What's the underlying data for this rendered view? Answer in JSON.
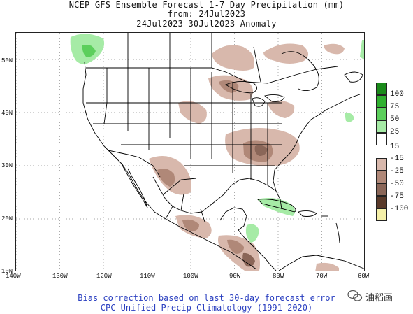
{
  "title": {
    "line1": "NCEP GFS Ensemble Forecast 1-7 Day Precipitation (mm)",
    "line2": "from: 24Jul2023",
    "line3": "24Jul2023-30Jul2023 Anomaly"
  },
  "axes": {
    "lat_labels": [
      "50N",
      "40N",
      "30N",
      "20N",
      "10N"
    ],
    "lat_values": [
      50,
      40,
      30,
      20,
      10
    ],
    "lon_labels": [
      "140W",
      "130W",
      "120W",
      "110W",
      "100W",
      "90W",
      "80W",
      "70W",
      "60W"
    ],
    "lon_values": [
      -140,
      -130,
      -120,
      -110,
      -100,
      -90,
      -80,
      -70,
      -60
    ],
    "lon_range": [
      -140,
      -60
    ],
    "lat_range": [
      10,
      55
    ]
  },
  "legend": {
    "entries": [
      {
        "label": "100",
        "color": "#1a8a1a"
      },
      {
        "label": "75",
        "color": "#2fb02f"
      },
      {
        "label": "50",
        "color": "#5ccf5c"
      },
      {
        "label": "25",
        "color": "#a6eba6"
      },
      {
        "label": "15",
        "color": "#ffffff"
      },
      {
        "label": "-15",
        "color": "#d8b8ac"
      },
      {
        "label": "-25",
        "color": "#b08878"
      },
      {
        "label": "-50",
        "color": "#8a6658"
      },
      {
        "label": "-75",
        "color": "#5a3a2a"
      },
      {
        "label": "-100",
        "color": "#f5f0a8"
      }
    ]
  },
  "footer": {
    "line1": "Bias correction based on last 30-day forecast error",
    "line2": "CPC Unified Precip Climatology (1991-2020)"
  },
  "watermark": {
    "text": "油稻画"
  }
}
